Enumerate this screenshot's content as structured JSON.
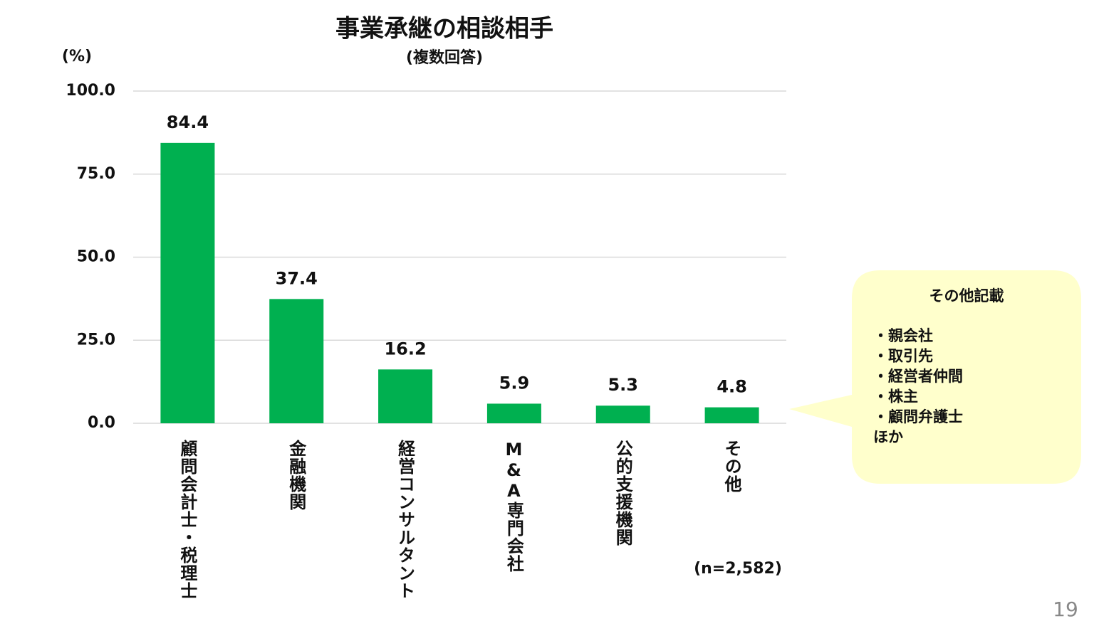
{
  "chart_data": {
    "type": "bar",
    "title": "事業承継の相談相手",
    "subtitle": "(複数回答)",
    "y_unit": "(%)",
    "categories": [
      "顧問会計士・税理士",
      "金融機関",
      "経営コンサルタント",
      "M&A専門会社",
      "公的支援機関",
      "その他"
    ],
    "values": [
      84.4,
      37.4,
      16.2,
      5.9,
      5.3,
      4.8
    ],
    "color": "#00b050",
    "ylim": [
      0,
      100
    ],
    "yticks": [
      {
        "value": 0,
        "label": "0.0"
      },
      {
        "value": 25,
        "label": "25.0"
      },
      {
        "value": 50,
        "label": "50.0"
      },
      {
        "value": 75,
        "label": "75.0"
      },
      {
        "value": 100,
        "label": "100.0"
      }
    ],
    "grid": true,
    "note": "(n=2,582)"
  },
  "callout": {
    "title": "その他記載",
    "items": [
      "・親会社",
      "・取引先",
      "・経営者仲間",
      "・株主",
      "・顧問弁護士"
    ],
    "footer": "ほか"
  },
  "page_number": "19"
}
